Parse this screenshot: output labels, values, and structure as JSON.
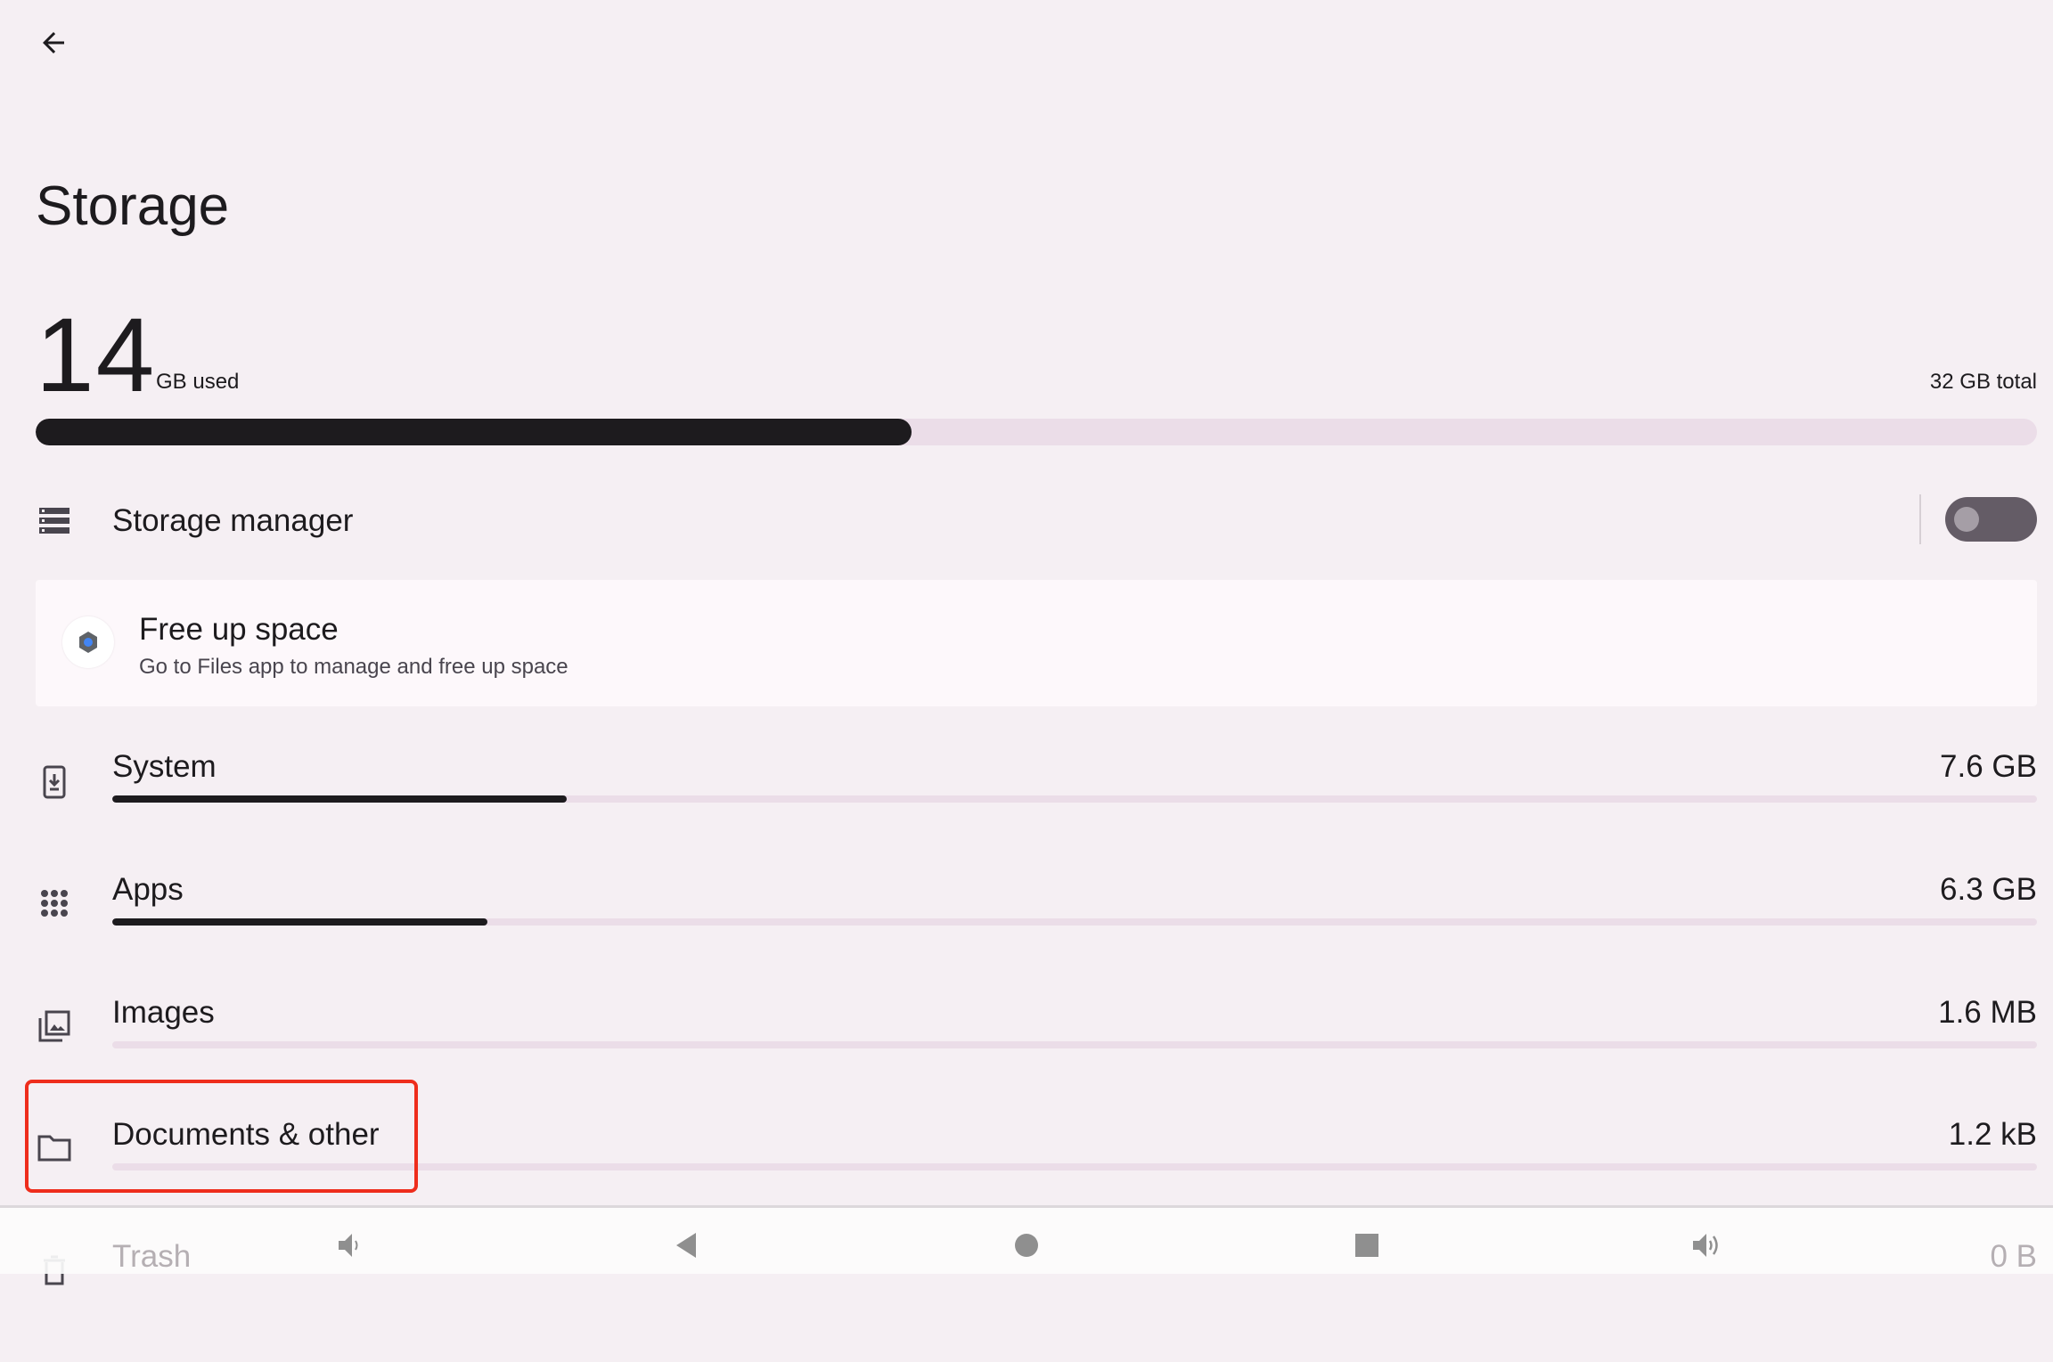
{
  "header": {
    "back_icon": "arrow-left-icon",
    "title": "Storage"
  },
  "summary": {
    "used_value": "14",
    "used_unit": "GB used",
    "total": "32 GB total",
    "used_fraction": 0.4375
  },
  "storage_manager": {
    "label": "Storage manager",
    "icon": "storage-list-icon",
    "enabled": false
  },
  "free_up_card": {
    "title": "Free up space",
    "subtitle": "Go to Files app to manage and free up space",
    "icon": "files-app-icon"
  },
  "categories": [
    {
      "label": "System",
      "value": "7.6 GB",
      "fraction": 0.236,
      "icon": "system-update-icon"
    },
    {
      "label": "Apps",
      "value": "6.3 GB",
      "fraction": 0.195,
      "icon": "apps-grid-icon"
    },
    {
      "label": "Images",
      "value": "1.6 MB",
      "fraction": 0.0,
      "icon": "image-icon"
    },
    {
      "label": "Documents & other",
      "value": "1.2 kB",
      "fraction": 0.0,
      "icon": "folder-icon"
    },
    {
      "label": "Trash",
      "value": "0 B",
      "fraction": 0.0,
      "icon": "trash-icon"
    }
  ],
  "highlight_color": "#ee2d1c",
  "navbar": {
    "icons": [
      "volume-down-icon",
      "back-triangle-icon",
      "home-circle-icon",
      "recents-square-icon",
      "volume-up-icon"
    ]
  }
}
